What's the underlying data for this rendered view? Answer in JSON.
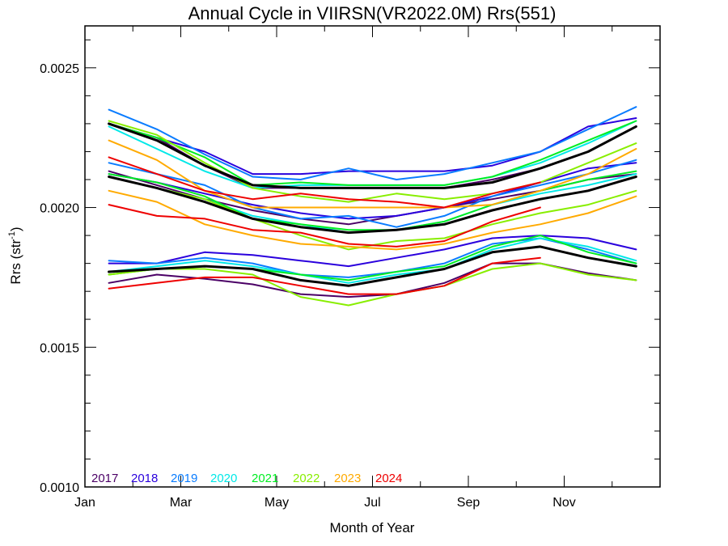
{
  "chart_data": {
    "type": "line",
    "title": "Annual Cycle in VIIRSN(VR2022.0M) Rrs(551)",
    "xlabel": "Month of Year",
    "ylabel": "Rrs (str",
    "ylabel_sup": "-1",
    "ylabel_close": ")",
    "xlim": [
      0,
      12
    ],
    "ylim": [
      0.001,
      0.00265
    ],
    "x_ticks": [
      {
        "value": 0,
        "label": "Jan"
      },
      {
        "value": 2,
        "label": "Mar"
      },
      {
        "value": 4,
        "label": "May"
      },
      {
        "value": 6,
        "label": "Jul"
      },
      {
        "value": 8,
        "label": "Sep"
      },
      {
        "value": 10,
        "label": "Nov"
      }
    ],
    "y_ticks": [
      {
        "value": 0.001,
        "label": "0.0010"
      },
      {
        "value": 0.0015,
        "label": "0.0015"
      },
      {
        "value": 0.002,
        "label": "0.0020"
      },
      {
        "value": 0.0025,
        "label": "0.0025"
      }
    ],
    "y_minor_step": 0.0001,
    "x_minor_step": 1,
    "legend_position": "bottom-left",
    "x": [
      0.5,
      1.5,
      2.5,
      3.5,
      4.5,
      5.5,
      6.5,
      7.5,
      8.5,
      9.5,
      10.5,
      11.5
    ],
    "series": [
      {
        "name": "2017",
        "color": "#4b0066",
        "group": "low",
        "values": [
          0.00173,
          0.00176,
          0.001745,
          0.001725,
          0.00169,
          0.00168,
          0.00169,
          0.00173,
          0.0018,
          0.0018,
          0.001765,
          0.00174
        ]
      },
      {
        "name": "2018",
        "color": "#2a00dd",
        "group": "low",
        "values": [
          0.0018,
          0.0018,
          0.00184,
          0.00183,
          0.00181,
          0.00179,
          0.00182,
          0.00185,
          0.00189,
          0.0019,
          0.00189,
          0.00185
        ]
      },
      {
        "name": "2019",
        "color": "#0a7cff",
        "group": "low",
        "values": [
          0.00181,
          0.0018,
          0.00182,
          0.0018,
          0.00176,
          0.00175,
          0.00177,
          0.0018,
          0.00187,
          0.00189,
          0.00185,
          0.0018
        ]
      },
      {
        "name": "2020",
        "color": "#00e8e8",
        "group": "low",
        "values": [
          0.00177,
          0.00179,
          0.00181,
          0.00179,
          0.00176,
          0.00173,
          0.00176,
          0.00178,
          0.00185,
          0.00189,
          0.00186,
          0.00181
        ]
      },
      {
        "name": "2021",
        "color": "#00ee22",
        "group": "low",
        "values": [
          0.00176,
          0.00178,
          0.00179,
          0.00178,
          0.00176,
          0.00174,
          0.00177,
          0.00179,
          0.00186,
          0.0019,
          0.00184,
          0.0018
        ]
      },
      {
        "name": "2022",
        "color": "#88ee00",
        "group": "low",
        "values": [
          0.00176,
          0.00178,
          0.00178,
          0.00176,
          0.00168,
          0.00165,
          0.00169,
          0.00172,
          0.00178,
          0.0018,
          0.00176,
          0.00174
        ]
      },
      {
        "name": "2024",
        "color": "#ee0000",
        "group": "low",
        "values": [
          0.00171,
          0.00173,
          0.00175,
          0.00175,
          0.00172,
          0.00169,
          0.00169,
          0.00172,
          0.0018,
          0.00182,
          null,
          null
        ]
      },
      {
        "name": "mean",
        "color": "#000000",
        "width": 3,
        "group": "low",
        "values": [
          0.00177,
          0.00178,
          0.00179,
          0.00178,
          0.00174,
          0.00172,
          0.00175,
          0.00178,
          0.00184,
          0.00186,
          0.00182,
          0.00179
        ]
      },
      {
        "name": "2017",
        "color": "#4b0066",
        "group": "mid",
        "values": [
          0.00213,
          0.00208,
          0.00203,
          0.00199,
          0.00196,
          0.00194,
          0.00197,
          0.002,
          0.00203,
          0.00206,
          0.0021,
          0.00212
        ]
      },
      {
        "name": "2018",
        "color": "#2a00dd",
        "group": "mid",
        "values": [
          0.00212,
          0.00209,
          0.00205,
          0.00201,
          0.00198,
          0.00196,
          0.00197,
          0.002,
          0.00204,
          0.00209,
          0.00214,
          0.00216
        ]
      },
      {
        "name": "2019",
        "color": "#0a7cff",
        "group": "mid",
        "values": [
          0.00216,
          0.00212,
          0.00208,
          0.002,
          0.00196,
          0.00197,
          0.00193,
          0.00197,
          0.00204,
          0.00208,
          0.00212,
          0.00217
        ]
      },
      {
        "name": "2020",
        "color": "#00e8e8",
        "group": "mid",
        "values": [
          0.00211,
          0.00207,
          0.00203,
          0.00197,
          0.00194,
          0.00191,
          0.00192,
          0.00195,
          0.00201,
          0.00205,
          0.00208,
          0.00212
        ]
      },
      {
        "name": "2021",
        "color": "#00ee22",
        "group": "mid",
        "values": [
          0.00212,
          0.00209,
          0.00204,
          0.00196,
          0.00194,
          0.00192,
          0.00192,
          0.00195,
          0.00201,
          0.00206,
          0.0021,
          0.00213
        ]
      },
      {
        "name": "2022",
        "color": "#88ee00",
        "group": "mid",
        "values": [
          0.00211,
          0.00207,
          0.00203,
          0.00196,
          0.0019,
          0.00185,
          0.00188,
          0.00189,
          0.00194,
          0.00198,
          0.00201,
          0.00206
        ]
      },
      {
        "name": "2023",
        "color": "#ffaa00",
        "group": "mid",
        "values": [
          0.00206,
          0.00202,
          0.00194,
          0.0019,
          0.00187,
          0.00186,
          0.00185,
          0.00187,
          0.00191,
          0.00194,
          0.00198,
          0.00204
        ]
      },
      {
        "name": "2024",
        "color": "#ee0000",
        "group": "mid",
        "values": [
          0.00201,
          0.00197,
          0.00196,
          0.00192,
          0.00191,
          0.00187,
          0.00186,
          0.00188,
          0.00195,
          0.002,
          null,
          null
        ]
      },
      {
        "name": "mean",
        "color": "#000000",
        "width": 3,
        "group": "mid",
        "values": [
          0.00211,
          0.00207,
          0.00202,
          0.00196,
          0.00193,
          0.00191,
          0.00192,
          0.00194,
          0.00199,
          0.00203,
          0.00206,
          0.00211
        ]
      },
      {
        "name": "2017",
        "color": "#4b0066",
        "group": "high",
        "values": [
          0.0023,
          0.00225,
          0.00215,
          0.00207,
          0.00207,
          0.00207,
          0.00207,
          0.00207,
          0.0021,
          0.00214,
          0.0022,
          0.00229
        ]
      },
      {
        "name": "2018",
        "color": "#2a00dd",
        "group": "high",
        "values": [
          0.0023,
          0.00225,
          0.0022,
          0.00212,
          0.00212,
          0.00213,
          0.00213,
          0.00213,
          0.00215,
          0.0022,
          0.00229,
          0.00232
        ]
      },
      {
        "name": "2019",
        "color": "#0a7cff",
        "group": "high",
        "values": [
          0.00235,
          0.00228,
          0.00219,
          0.00211,
          0.0021,
          0.00214,
          0.0021,
          0.00212,
          0.00216,
          0.0022,
          0.00228,
          0.00236
        ]
      },
      {
        "name": "2020",
        "color": "#00e8e8",
        "group": "high",
        "values": [
          0.00229,
          0.00221,
          0.00213,
          0.00207,
          0.00208,
          0.00208,
          0.00208,
          0.00208,
          0.00211,
          0.00216,
          0.00223,
          0.00231
        ]
      },
      {
        "name": "2021",
        "color": "#00ee22",
        "group": "high",
        "values": [
          0.0023,
          0.00225,
          0.00218,
          0.00208,
          0.00209,
          0.00208,
          0.00208,
          0.00208,
          0.00211,
          0.00217,
          0.00224,
          0.00231
        ]
      },
      {
        "name": "2022",
        "color": "#88ee00",
        "group": "high",
        "values": [
          0.00231,
          0.00226,
          0.00216,
          0.00207,
          0.00204,
          0.00202,
          0.00205,
          0.00203,
          0.00205,
          0.00209,
          0.00216,
          0.00223
        ]
      },
      {
        "name": "2023",
        "color": "#ffaa00",
        "group": "high",
        "values": [
          0.00224,
          0.00217,
          0.00206,
          0.002,
          0.002,
          0.002,
          0.002,
          0.002,
          0.00201,
          0.00206,
          0.00212,
          0.00221
        ]
      },
      {
        "name": "2024",
        "color": "#ee0000",
        "group": "high",
        "values": [
          0.00218,
          0.00212,
          0.00206,
          0.00203,
          0.00205,
          0.00203,
          0.00202,
          0.002,
          0.00205,
          0.00209,
          null,
          null
        ]
      },
      {
        "name": "mean",
        "color": "#000000",
        "width": 3,
        "group": "high",
        "values": [
          0.0023,
          0.00224,
          0.00215,
          0.00208,
          0.00207,
          0.00207,
          0.00207,
          0.00207,
          0.00209,
          0.00214,
          0.0022,
          0.00229
        ]
      }
    ],
    "legend": [
      {
        "label": "2017",
        "color": "#4b0066"
      },
      {
        "label": "2018",
        "color": "#2a00dd"
      },
      {
        "label": "2019",
        "color": "#0a7cff"
      },
      {
        "label": "2020",
        "color": "#00e8e8"
      },
      {
        "label": "2021",
        "color": "#00ee22"
      },
      {
        "label": "2022",
        "color": "#88ee00"
      },
      {
        "label": "2023",
        "color": "#ffaa00"
      },
      {
        "label": "2024",
        "color": "#ee0000"
      }
    ]
  }
}
